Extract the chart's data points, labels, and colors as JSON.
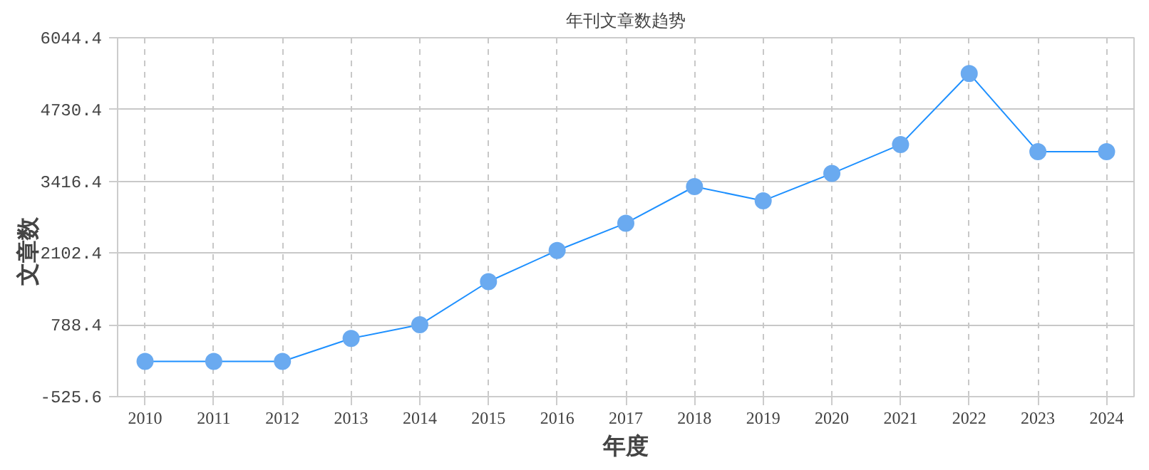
{
  "chart_data": {
    "type": "line",
    "title": "年刊文章数趋势",
    "xlabel": "年度",
    "ylabel": "文章数",
    "categories": [
      "2010",
      "2011",
      "2012",
      "2013",
      "2014",
      "2015",
      "2016",
      "2017",
      "2018",
      "2019",
      "2020",
      "2021",
      "2022",
      "2023",
      "2024"
    ],
    "series": [
      {
        "color": "#1e90ff",
        "values": [
          120,
          120,
          120,
          540,
          790,
          1580,
          2150,
          2650,
          3320,
          3060,
          3560,
          4090,
          5390,
          3960,
          3960
        ]
      }
    ],
    "ylim": [
      -525.6,
      6044.4
    ],
    "yticks": [
      -525.6,
      788.4,
      2102.4,
      3416.4,
      4730.4,
      6044.4
    ],
    "grid": true,
    "marker": "circle",
    "line_style": "solid"
  }
}
